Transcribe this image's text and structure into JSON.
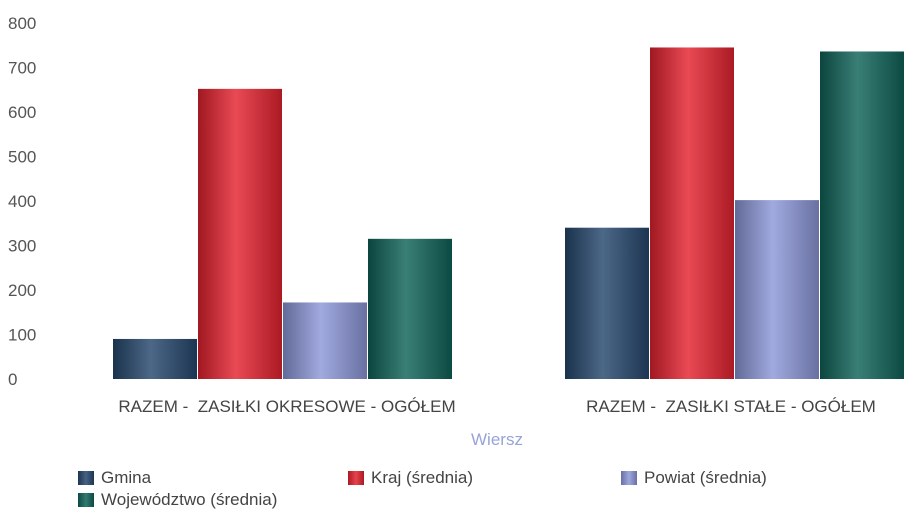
{
  "chart_data": {
    "type": "bar",
    "categories": [
      "RAZEM -  ZASIŁKI OKRESOWE - OGÓŁEM",
      "RAZEM -  ZASIŁKI STAŁE - OGÓŁEM"
    ],
    "series": [
      {
        "name": "Gmina",
        "color": "#25476d",
        "values": [
          90,
          340
        ]
      },
      {
        "name": "Kraj (średnia)",
        "color": "#e4222f",
        "values": [
          652,
          745
        ]
      },
      {
        "name": "Powiat (średnia)",
        "color": "#8c97d8",
        "values": [
          172,
          402
        ]
      },
      {
        "name": "Województwo (średnia)",
        "color": "#0f6358",
        "values": [
          315,
          736
        ]
      }
    ],
    "xlabel": "Wiersz",
    "ylabel": "",
    "ylim": [
      0,
      800
    ],
    "yticks": [
      "0",
      "100",
      "200",
      "300",
      "400",
      "500",
      "600",
      "700",
      "800"
    ],
    "grid": false,
    "legend_position": "bottom"
  }
}
